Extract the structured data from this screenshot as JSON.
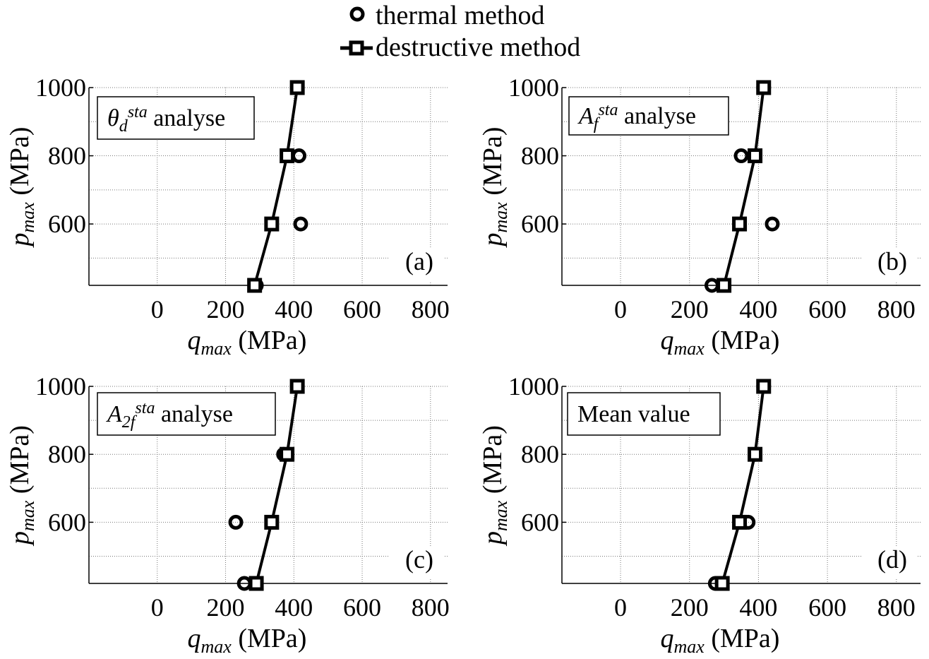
{
  "legend": {
    "thermal_label": "thermal method",
    "destructive_label": "destructive method"
  },
  "chart_data": [
    {
      "type": "line",
      "panel": "(a)",
      "box": {
        "main": "θ",
        "sub": "d",
        "sup": "sta",
        "rest": " analyse"
      },
      "xlabel": {
        "main": "q",
        "sub": "max",
        "rest": " (MPa)"
      },
      "ylabel": {
        "main": "p",
        "sub": "max",
        "rest": " (MPa)"
      },
      "xlim": [
        -200,
        850
      ],
      "ylim": [
        420,
        1000
      ],
      "xticks": [
        0,
        200,
        400,
        600,
        800
      ],
      "yticks": [
        600,
        800,
        1000
      ],
      "grid": true,
      "series": [
        {
          "name": "thermal method",
          "marker": "circle",
          "line": false,
          "points": [
            [
              290,
              420
            ],
            [
              420,
              600
            ],
            [
              415,
              800
            ],
            [
              410,
              1000
            ]
          ]
        },
        {
          "name": "destructive method",
          "marker": "square",
          "line": true,
          "points": [
            [
              285,
              420
            ],
            [
              335,
              600
            ],
            [
              380,
              800
            ],
            [
              410,
              1000
            ]
          ]
        }
      ]
    },
    {
      "type": "line",
      "panel": "(b)",
      "box": {
        "main": "A",
        "sub": "f",
        "sup": "sta",
        "rest": "  analyse"
      },
      "xlabel": {
        "main": "q",
        "sub": "max",
        "rest": " (MPa)"
      },
      "ylabel": {
        "main": "p",
        "sub": "max",
        "rest": " (MPa)"
      },
      "xlim": [
        -170,
        870
      ],
      "ylim": [
        420,
        1000
      ],
      "xticks": [
        0,
        200,
        400,
        600,
        800
      ],
      "yticks": [
        600,
        800,
        1000
      ],
      "grid": true,
      "series": [
        {
          "name": "thermal method",
          "marker": "circle",
          "line": false,
          "points": [
            [
              265,
              420
            ],
            [
              440,
              600
            ],
            [
              350,
              800
            ],
            [
              415,
              1000
            ]
          ]
        },
        {
          "name": "destructive method",
          "marker": "square",
          "line": true,
          "points": [
            [
              300,
              420
            ],
            [
              345,
              600
            ],
            [
              390,
              800
            ],
            [
              415,
              1000
            ]
          ]
        }
      ]
    },
    {
      "type": "line",
      "panel": "(c)",
      "box": {
        "main": "A",
        "sub": "2f",
        "sup": "sta",
        "rest": "  analyse"
      },
      "xlabel": {
        "main": "q",
        "sub": "max",
        "rest": " (MPa)"
      },
      "ylabel": {
        "main": "p",
        "sub": "max",
        "rest": " (MPa)"
      },
      "xlim": [
        -200,
        850
      ],
      "ylim": [
        420,
        1000
      ],
      "xticks": [
        0,
        200,
        400,
        600,
        800
      ],
      "yticks": [
        600,
        800,
        1000
      ],
      "grid": true,
      "series": [
        {
          "name": "thermal method",
          "marker": "circle",
          "line": false,
          "points": [
            [
              255,
              420
            ],
            [
              230,
              600
            ],
            [
              370,
              800
            ],
            [
              410,
              1000
            ]
          ]
        },
        {
          "name": "destructive method",
          "marker": "square",
          "line": true,
          "points": [
            [
              290,
              420
            ],
            [
              335,
              600
            ],
            [
              380,
              800
            ],
            [
              410,
              1000
            ]
          ]
        }
      ]
    },
    {
      "type": "line",
      "panel": "(d)",
      "box": {
        "main": "Mean value",
        "sub": "",
        "sup": "",
        "rest": ""
      },
      "xlabel": {
        "main": "q",
        "sub": "max",
        "rest": " (MPa)"
      },
      "ylabel": {
        "main": "p",
        "sub": "max",
        "rest": " (MPa)"
      },
      "xlim": [
        -170,
        870
      ],
      "ylim": [
        420,
        1000
      ],
      "xticks": [
        0,
        200,
        400,
        600,
        800
      ],
      "yticks": [
        600,
        800,
        1000
      ],
      "grid": true,
      "series": [
        {
          "name": "thermal method",
          "marker": "circle",
          "line": false,
          "points": [
            [
              275,
              420
            ],
            [
              370,
              600
            ],
            [
              390,
              800
            ],
            [
              415,
              1000
            ]
          ]
        },
        {
          "name": "destructive method",
          "marker": "square",
          "line": true,
          "points": [
            [
              295,
              420
            ],
            [
              345,
              600
            ],
            [
              390,
              800
            ],
            [
              415,
              1000
            ]
          ]
        }
      ]
    }
  ]
}
